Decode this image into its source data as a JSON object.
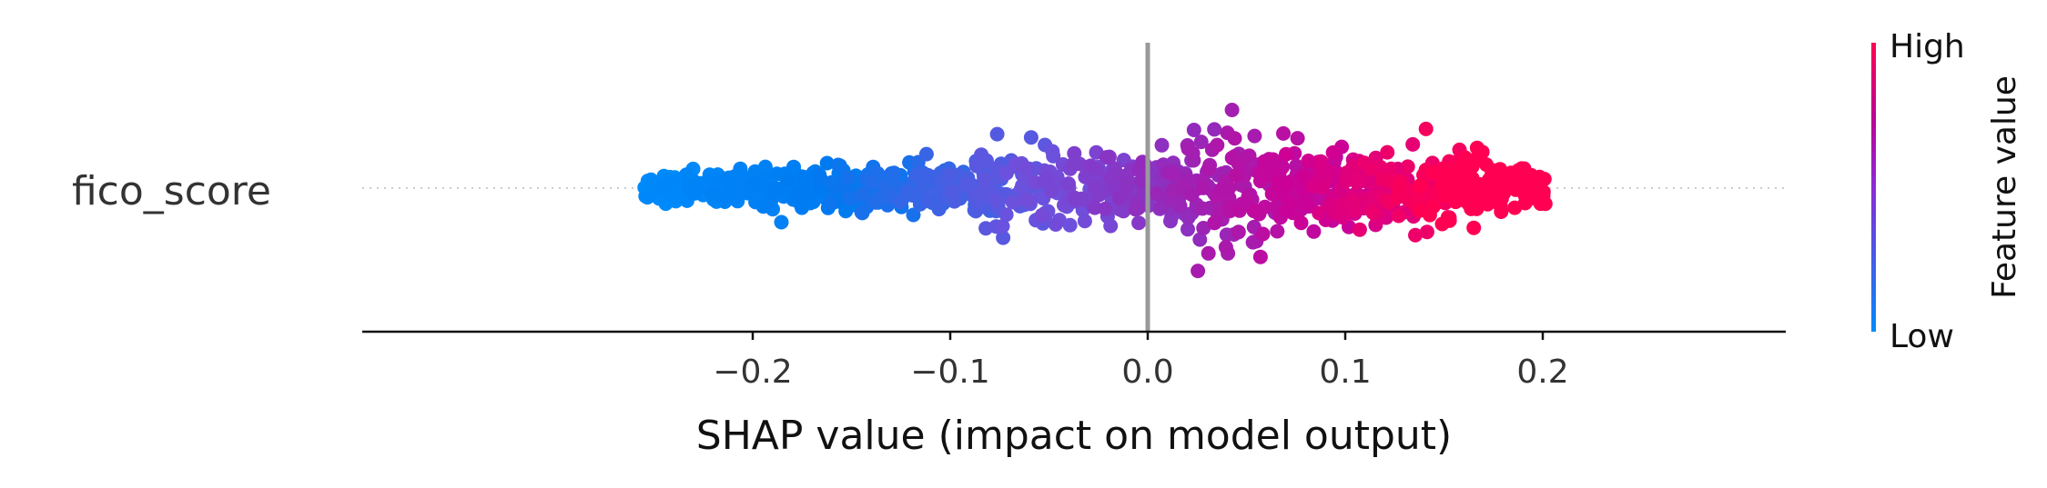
{
  "chart_data": {
    "type": "scatter",
    "subtype": "shap-beeswarm",
    "feature": "fico_score",
    "xlabel": "SHAP value (impact on model output)",
    "xlim": [
      -0.28,
      0.225
    ],
    "xticks": [
      -0.2,
      -0.1,
      0.0,
      0.1,
      0.2
    ],
    "xtick_labels": [
      "−0.2",
      "−0.1",
      "0.0",
      "0.1",
      "0.2"
    ],
    "shap_range": [
      -0.257,
      0.202
    ],
    "zero_line": 0.0,
    "colorbar": {
      "label": "Feature value",
      "high_label": "High",
      "low_label": "Low",
      "high_color": "#ff0052",
      "low_color": "#008bfb"
    },
    "points_note": "Dense beeswarm: ~1000 points spread from -0.257 to 0.202; feature value increases with SHAP value (blue at low SHAP, red at high SHAP)."
  }
}
